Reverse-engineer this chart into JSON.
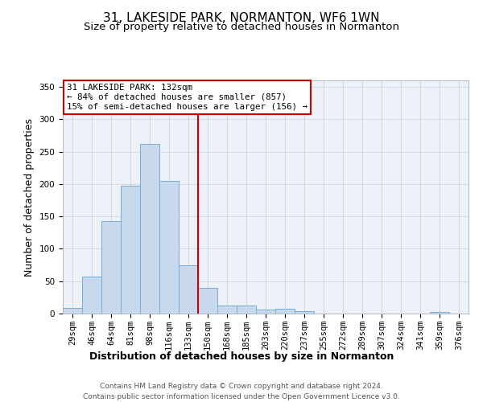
{
  "title": "31, LAKESIDE PARK, NORMANTON, WF6 1WN",
  "subtitle": "Size of property relative to detached houses in Normanton",
  "xlabel": "Distribution of detached houses by size in Normanton",
  "ylabel": "Number of detached properties",
  "footer_line1": "Contains HM Land Registry data © Crown copyright and database right 2024.",
  "footer_line2": "Contains public sector information licensed under the Open Government Licence v3.0.",
  "bar_labels": [
    "29sqm",
    "46sqm",
    "64sqm",
    "81sqm",
    "98sqm",
    "116sqm",
    "133sqm",
    "150sqm",
    "168sqm",
    "185sqm",
    "203sqm",
    "220sqm",
    "237sqm",
    "255sqm",
    "272sqm",
    "289sqm",
    "307sqm",
    "324sqm",
    "341sqm",
    "359sqm",
    "376sqm"
  ],
  "bar_values": [
    9,
    57,
    143,
    198,
    262,
    205,
    75,
    40,
    12,
    13,
    6,
    7,
    4,
    0,
    0,
    0,
    0,
    0,
    0,
    3,
    0
  ],
  "bar_color": "#c9d9ed",
  "bar_edge_color": "#7aadd4",
  "vline_x": 6,
  "vline_color": "#cc0000",
  "annotation_text": "31 LAKESIDE PARK: 132sqm\n← 84% of detached houses are smaller (857)\n15% of semi-detached houses are larger (156) →",
  "annotation_box_color": "#cc0000",
  "annotation_text_color": "#000000",
  "annotation_bg_color": "#ffffff",
  "ylim": [
    0,
    360
  ],
  "yticks": [
    0,
    50,
    100,
    150,
    200,
    250,
    300,
    350
  ],
  "grid_color": "#c8d4e4",
  "bg_color": "#edf2f8",
  "title_fontsize": 11,
  "subtitle_fontsize": 9.5,
  "axis_label_fontsize": 9,
  "tick_fontsize": 7.5,
  "footer_fontsize": 6.5
}
